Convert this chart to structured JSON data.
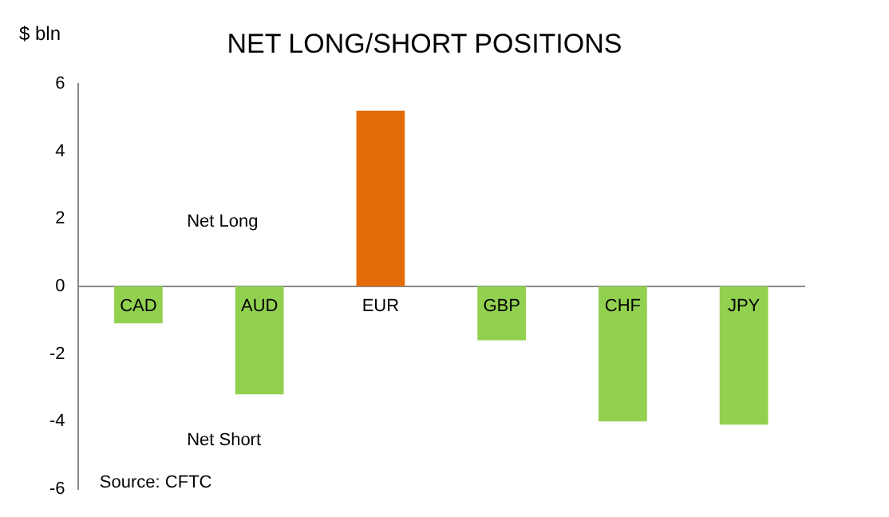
{
  "chart_data": {
    "type": "bar",
    "title": "NET LONG/SHORT POSITIONS",
    "ylabel": "$ bln",
    "categories": [
      "CAD",
      "AUD",
      "EUR",
      "GBP",
      "CHF",
      "JPY"
    ],
    "values": [
      -1.1,
      -3.2,
      5.2,
      -1.6,
      -4.0,
      -4.1
    ],
    "colors": [
      "#92d050",
      "#92d050",
      "#e36c09",
      "#92d050",
      "#92d050",
      "#92d050"
    ],
    "ylim": [
      -6,
      6
    ],
    "yticks": [
      -6,
      -4,
      -2,
      0,
      2,
      4,
      6
    ],
    "grid": false,
    "legend": false,
    "annotations": [
      "Net Long",
      "Net Short",
      "Source: CFTC"
    ]
  }
}
